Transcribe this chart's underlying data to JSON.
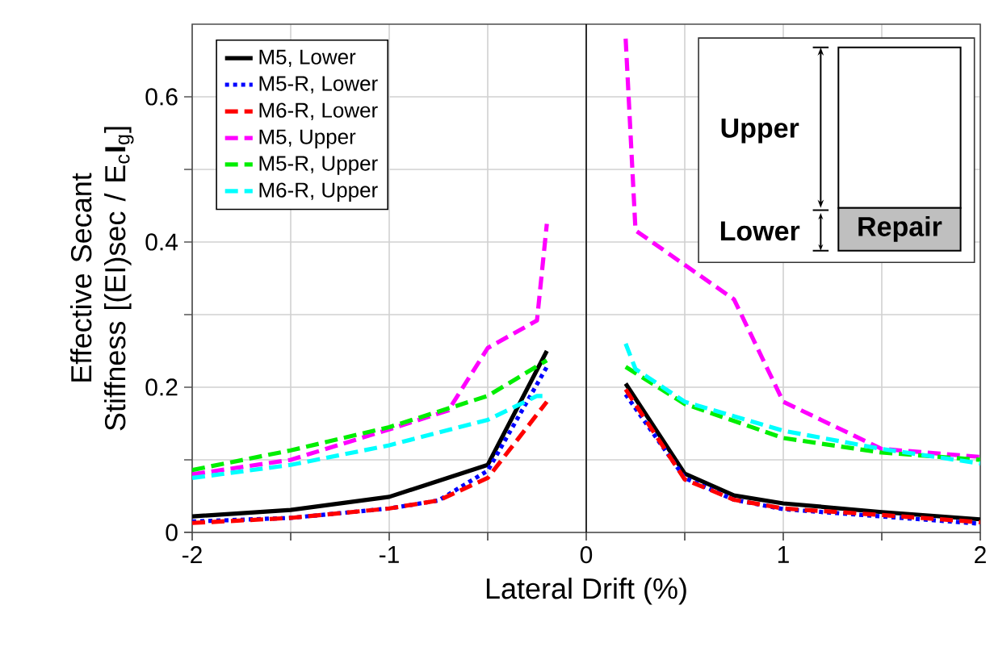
{
  "chart_data": {
    "type": "line",
    "xlabel": "Lateral Drift (%)",
    "ylabel": "Effective Secant Stiffness [(EI)sec / E$_{c}$**I**$_{g}$]",
    "xlim": [
      -2,
      2
    ],
    "ylim": [
      0,
      0.7
    ],
    "xticks": [
      -2,
      {
        "value": -1.5,
        "label": null
      },
      -1,
      {
        "value": -0.5,
        "label": null
      },
      0,
      {
        "value": 0.5,
        "label": null
      },
      1,
      {
        "value": 1.5,
        "label": null
      },
      2
    ],
    "yticks": [
      0,
      {
        "value": 0.1,
        "label": null
      },
      0.2,
      {
        "value": 0.3,
        "label": null
      },
      0.4,
      {
        "value": 0.5,
        "label": null
      },
      0.6
    ],
    "grid": true,
    "legend": "top left",
    "marker": "none",
    "ref_lines": [
      {
        "axis": "x",
        "value": 0,
        "color": "#000000"
      }
    ],
    "annotations": [
      "Upper",
      "Lower",
      "Repair"
    ],
    "series": [
      {
        "name": "M5, Lower",
        "color": "#000000",
        "line_style": "solid",
        "x": [
          -2,
          -1.5,
          -1,
          -0.5,
          -0.2,
          0,
          0.2,
          0.5,
          0.75,
          1,
          1.5,
          2
        ],
        "values": [
          0.022,
          0.031,
          0.049,
          0.093,
          0.25,
          null,
          0.205,
          0.081,
          0.051,
          0.04,
          0.028,
          0.018
        ]
      },
      {
        "name": "M5-R, Lower",
        "color": "#0000ff",
        "line_style": "dotted",
        "x": [
          -2,
          -1.5,
          -1,
          -0.75,
          -0.5,
          -0.2,
          0,
          0.2,
          0.5,
          0.75,
          1,
          1.5,
          2
        ],
        "values": [
          0.015,
          0.02,
          0.033,
          0.044,
          0.085,
          0.228,
          null,
          0.19,
          0.075,
          0.045,
          0.032,
          0.022,
          0.012
        ]
      },
      {
        "name": "M6-R, Lower",
        "color": "#ff0000",
        "line_style": "dashed",
        "x": [
          -2,
          -1.5,
          -1,
          -0.75,
          -0.5,
          -0.2,
          0,
          0.2,
          0.5,
          0.75,
          1,
          1.5,
          2
        ],
        "values": [
          0.013,
          0.02,
          0.033,
          0.044,
          0.075,
          0.18,
          null,
          0.197,
          0.073,
          0.045,
          0.033,
          0.024,
          0.014
        ]
      },
      {
        "name": "M5, Upper",
        "color": "#ff00ff",
        "line_style": "dashed",
        "x": [
          -2,
          -1.5,
          -1,
          -0.7,
          -0.5,
          -0.25,
          -0.2,
          0,
          0.2,
          0.25,
          0.75,
          1,
          1.5,
          2
        ],
        "values": [
          0.08,
          0.1,
          0.142,
          0.168,
          0.254,
          0.292,
          0.425,
          null,
          0.68,
          0.416,
          0.321,
          0.18,
          0.115,
          0.104
        ]
      },
      {
        "name": "M5-R, Upper",
        "color": "#00ee00",
        "line_style": "dashed",
        "x": [
          -2,
          -1.5,
          -1,
          -0.5,
          -0.2,
          0,
          0.2,
          0.5,
          1,
          1.5,
          2
        ],
        "values": [
          0.086,
          0.113,
          0.145,
          0.188,
          0.237,
          null,
          0.228,
          0.177,
          0.13,
          0.11,
          0.1
        ]
      },
      {
        "name": "M6-R, Upper",
        "color": "#00ffff",
        "line_style": "dashed",
        "x": [
          -2,
          -1.5,
          -1,
          -0.5,
          -0.25,
          -0.2,
          0,
          0.2,
          0.25,
          0.5,
          1,
          1.5,
          2
        ],
        "values": [
          0.075,
          0.093,
          0.12,
          0.155,
          0.188,
          0.188,
          null,
          0.26,
          0.225,
          0.18,
          0.14,
          0.115,
          0.095
        ]
      }
    ]
  }
}
